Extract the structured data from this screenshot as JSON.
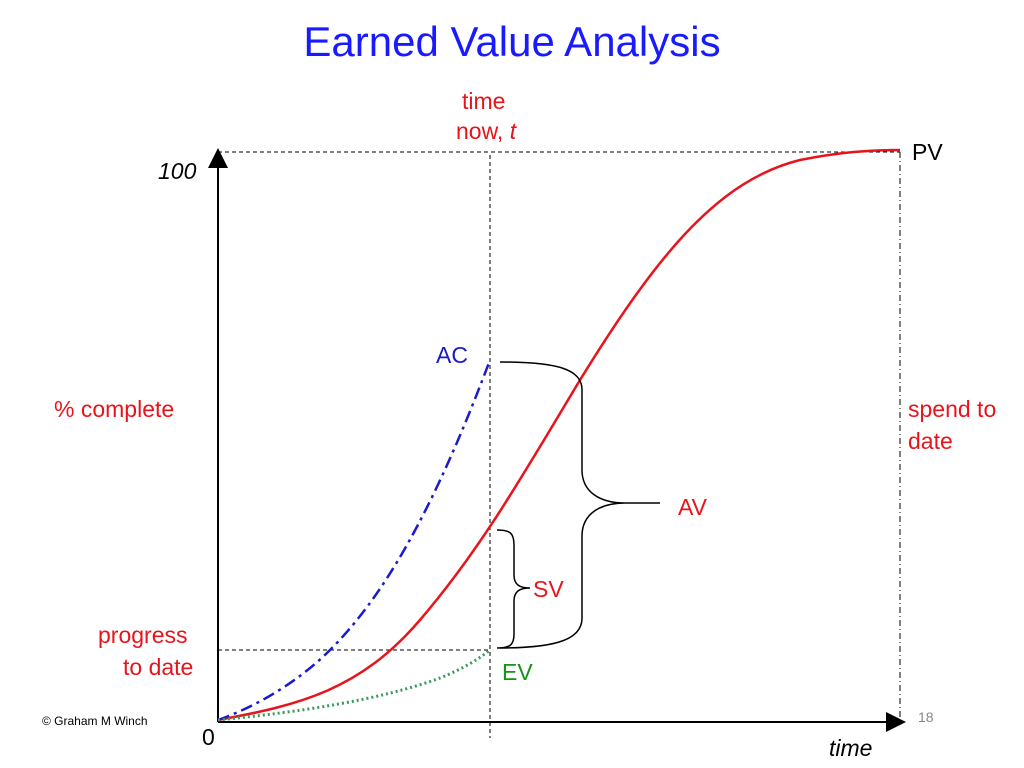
{
  "title": "Earned Value Analysis",
  "time_now": {
    "line1": "time",
    "line2_prefix": "now, ",
    "line2_var": "t"
  },
  "y_axis": {
    "top_tick": "100",
    "origin": "0",
    "label": "% complete"
  },
  "x_axis": {
    "label": "time"
  },
  "curve_labels": {
    "pv": "PV",
    "ac": "AC",
    "ev": "EV",
    "av": "AV",
    "sv": "SV"
  },
  "left_labels": {
    "progress_line1": "progress",
    "progress_line2": "to date"
  },
  "right_labels": {
    "spend_line1": "spend to",
    "spend_line2": "date"
  },
  "footer": {
    "copyright": "© Graham M Winch",
    "page_number": "18"
  },
  "colors": {
    "pv": "#e8141b",
    "ac": "#1a1acc",
    "ev": "#3a9a5a",
    "title": "#1a1aff",
    "axis": "#000000"
  }
}
